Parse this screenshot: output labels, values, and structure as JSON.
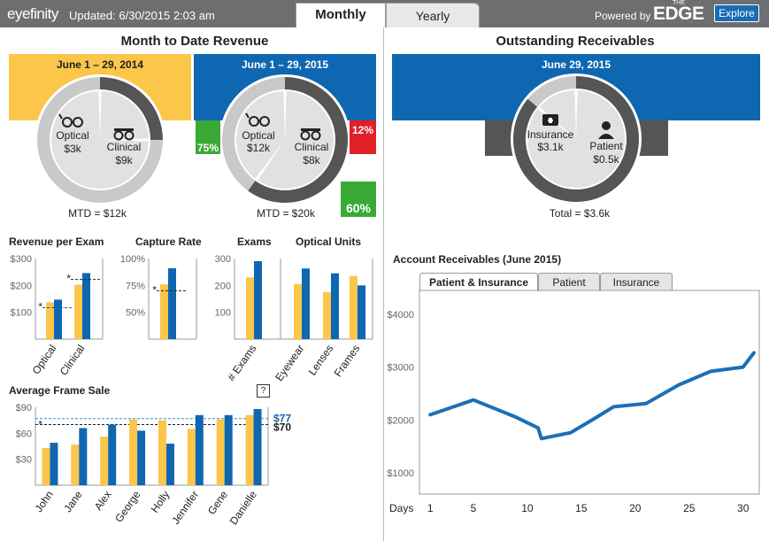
{
  "header": {
    "logo": "eyefinity",
    "updated": "Updated: 6/30/2015 2:03 am",
    "tabs": [
      "Monthly",
      "Yearly"
    ],
    "powered_by": "Powered by",
    "brand_the": "THE",
    "brand": "EDGE",
    "explore": "Explore"
  },
  "revenue": {
    "title": "Month to Date Revenue",
    "prior": {
      "period": "June 1 – 29, 2014",
      "optical_label": "Optical",
      "optical_value": "$3k",
      "clinical_label": "Clinical",
      "clinical_value": "$9k",
      "mtd": "MTD = $12k",
      "optical_share": 0.25
    },
    "current": {
      "period": "June 1 – 29, 2015",
      "optical_label": "Optical",
      "optical_value": "$12k",
      "clinical_label": "Clinical",
      "clinical_value": "$8k",
      "mtd": "MTD = $20k",
      "optical_share": 0.6
    },
    "badges": {
      "optical": "75%",
      "clinical": "12%",
      "total": "60%"
    },
    "colors": {
      "yellow": "#fbc64a",
      "blue": "#0f67b1",
      "up": "#3aa935",
      "down": "#e01f26"
    }
  },
  "receivables": {
    "title": "Outstanding Receivables",
    "date": "June 29, 2015",
    "insurance_label": "Insurance",
    "insurance_value": "$3.1k",
    "patient_label": "Patient",
    "patient_value": "$0.5k",
    "total": "Total = $3.6k",
    "insurance_share": 0.86
  },
  "small_charts": {
    "rpe": {
      "title": "Revenue per Exam",
      "ticks": [
        "$300",
        "$200",
        "$100"
      ],
      "categories": [
        "Optical",
        "Clinical"
      ],
      "prior": [
        137,
        203
      ],
      "current": [
        147,
        246
      ],
      "targets": [
        117,
        222
      ],
      "ylim": [
        0,
        300
      ]
    },
    "capture": {
      "title": "Capture Rate",
      "ticks": [
        "100%",
        "75%",
        "50%"
      ],
      "categories": [
        ""
      ],
      "prior": [
        0.76
      ],
      "current": [
        0.91
      ],
      "targets": [
        0.7
      ],
      "ylim": [
        0.25,
        1.0
      ]
    },
    "exams": {
      "title": "Exams",
      "ticks": [
        "300",
        "200",
        "100"
      ],
      "categories": [
        "# Exams"
      ],
      "prior": [
        230
      ],
      "current": [
        290
      ]
    },
    "units": {
      "title": "Optical Units",
      "categories": [
        "Eyewear",
        "Lenses",
        "Frames"
      ],
      "prior": [
        205,
        175,
        235
      ],
      "current": [
        263,
        245,
        200
      ]
    },
    "units_ylim": [
      0,
      300
    ],
    "target_marker": "*"
  },
  "frame": {
    "title": "Average Frame Sale",
    "help": "?",
    "ticks": [
      "$90",
      "$60",
      "$30"
    ],
    "ylim": [
      0,
      90
    ],
    "categories": [
      "John",
      "Jane",
      "Alex",
      "George",
      "Holly",
      "Jennifer",
      "Gene",
      "Danielle"
    ],
    "prior": [
      43,
      47,
      56,
      76,
      75,
      65,
      76,
      81
    ],
    "current": [
      49,
      66,
      70,
      63,
      48,
      81,
      81,
      88
    ],
    "target_blue": 77,
    "target_blue_label": "$77",
    "target_black": 70,
    "target_black_label": "$70"
  },
  "ar": {
    "title": "Account Receivables (June 2015)",
    "tabs": [
      "Patient & Insurance",
      "Patient",
      "Insurance"
    ],
    "yticks": [
      "$4000",
      "$3000",
      "$2000",
      "$1000"
    ],
    "xlabel": "Days",
    "xticks": [
      "1",
      "5",
      "10",
      "15",
      "20",
      "25",
      "30"
    ],
    "chart_data": {
      "type": "line",
      "x": [
        1,
        5,
        9,
        11,
        11.3,
        14,
        16,
        18,
        21,
        24,
        27,
        30,
        31
      ],
      "y": [
        2100,
        2380,
        2050,
        1850,
        1650,
        1760,
        2000,
        2250,
        2310,
        2660,
        2920,
        3000,
        3270
      ],
      "xlim": [
        0,
        31.5
      ],
      "ylim": [
        600,
        4450
      ]
    }
  }
}
